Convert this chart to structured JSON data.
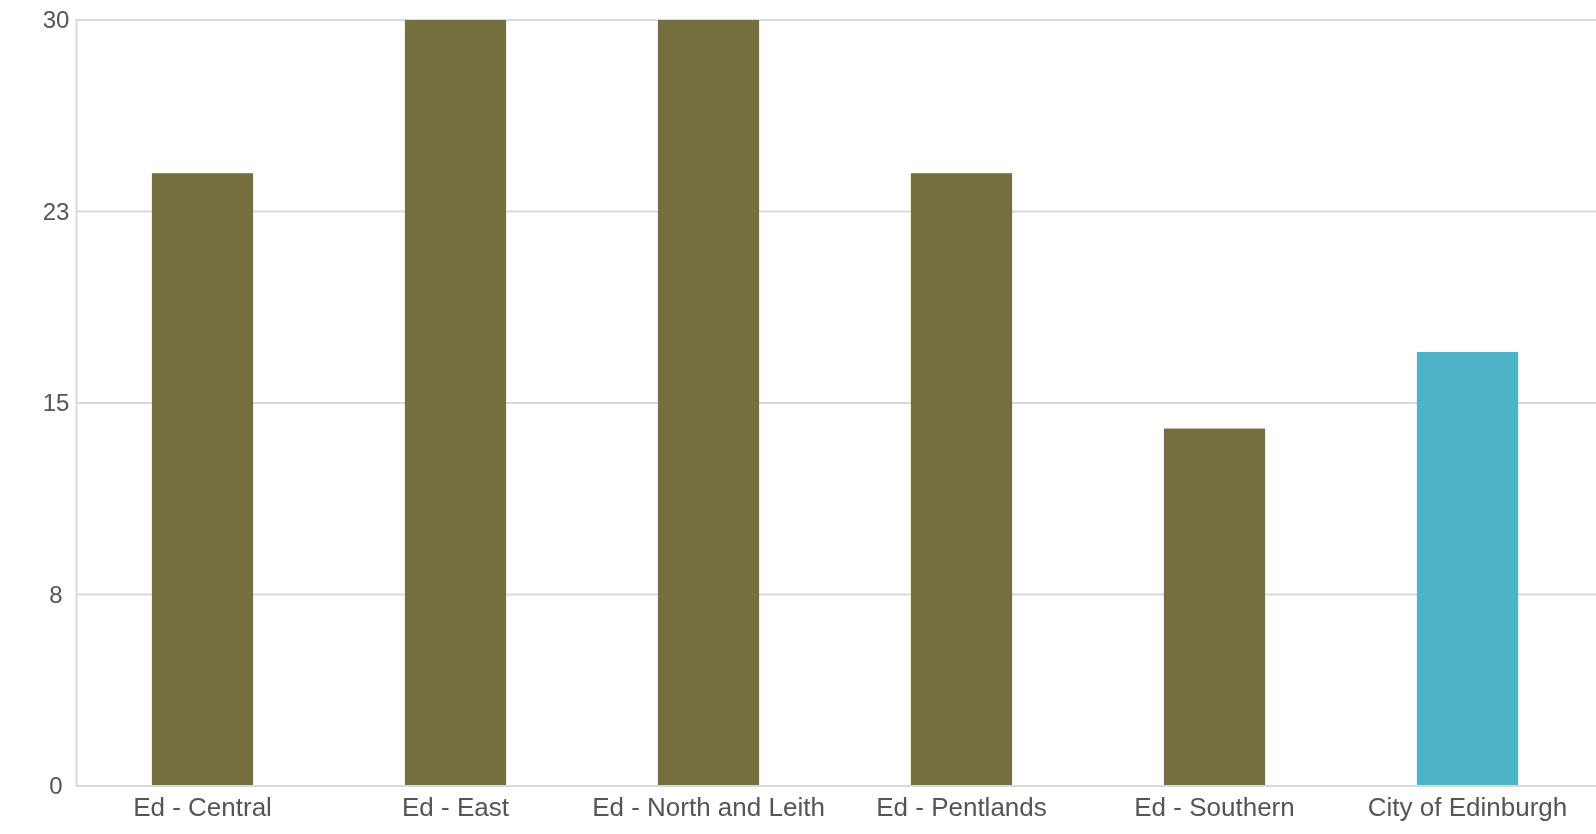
{
  "chart_data": {
    "type": "bar",
    "categories": [
      "Ed - Central",
      "Ed - East",
      "Ed - North and Leith",
      "Ed - Pentlands",
      "Ed - Southern",
      "City of Edinburgh"
    ],
    "values": [
      24,
      30,
      30,
      24,
      14,
      17
    ],
    "colors": [
      "#756f40",
      "#756f40",
      "#756f40",
      "#756f40",
      "#756f40",
      "#4fb3c8"
    ],
    "ylim": [
      0,
      30
    ],
    "yticks": [
      0,
      {
        "value": 7.5,
        "label": "8"
      },
      15,
      {
        "value": 22.5,
        "label": "23"
      },
      30
    ],
    "grid": "y"
  }
}
